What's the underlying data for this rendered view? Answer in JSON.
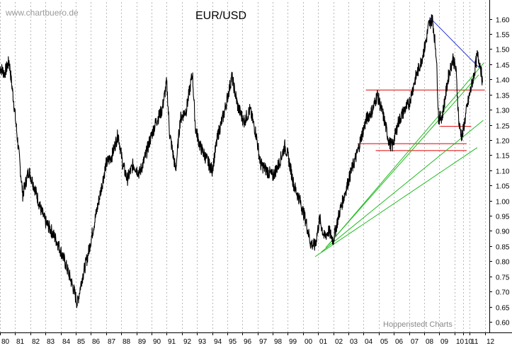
{
  "header": {
    "watermark": "www.chartbuero.de",
    "title": "EUR/USD",
    "credit": "Hoppenstedt Charts"
  },
  "colors": {
    "price": "#000000",
    "support_resistance": "#e00000",
    "uptrend": "#22bb22",
    "downtrend": "#2233cc",
    "grid": "#b8b8b8"
  },
  "chart_data": {
    "type": "line",
    "title": "EUR/USD",
    "xlabel": "",
    "ylabel": "",
    "xlim": [
      1980.0,
      2012.3
    ],
    "ylim": [
      0.565,
      1.655
    ],
    "y_ticks": [
      0.6,
      0.65,
      0.7,
      0.75,
      0.8,
      0.85,
      0.9,
      0.95,
      1.0,
      1.05,
      1.1,
      1.15,
      1.2,
      1.25,
      1.3,
      1.35,
      1.4,
      1.45,
      1.5,
      1.55,
      1.6
    ],
    "x_tick_labels": [
      "80",
      "81",
      "82",
      "83",
      "84",
      "85",
      "86",
      "87",
      "88",
      "89",
      "90",
      "91",
      "92",
      "93",
      "94",
      "95",
      "96",
      "97",
      "98",
      "99",
      "00",
      "01",
      "02",
      "03",
      "04",
      "05",
      "06",
      "07",
      "08",
      "09",
      "10",
      "10",
      "11",
      "12"
    ],
    "x_tick_years": [
      1980,
      1981,
      1982,
      1983,
      1984,
      1985,
      1986,
      1987,
      1988,
      1989,
      1990,
      1991,
      1992,
      1993,
      1994,
      1995,
      1996,
      1997,
      1998,
      1999,
      2000,
      2001,
      2002,
      2003,
      2004,
      2005,
      2006,
      2007,
      2008,
      2009,
      2010,
      2010.55,
      2011,
      2012
    ],
    "grid": "vertical dotted",
    "series": [
      {
        "x": [
          1980.0,
          1980.3,
          1980.6,
          1980.9,
          1981.2,
          1981.5,
          1981.9,
          1982.3,
          1982.7,
          1983.0,
          1983.4,
          1983.8,
          1984.2,
          1984.6,
          1984.9,
          1985.1,
          1985.4,
          1985.8,
          1986.2,
          1986.6,
          1987.0,
          1987.4,
          1987.8,
          1988.1,
          1988.4,
          1988.8,
          1989.2,
          1989.5,
          1989.9,
          1990.3,
          1990.7,
          1991.0,
          1991.2,
          1991.6,
          1991.9,
          1992.3,
          1992.7,
          1992.9,
          1993.2,
          1993.6,
          1994.0,
          1994.4,
          1994.8,
          1995.1,
          1995.3,
          1995.7,
          1996.1,
          1996.5,
          1996.9,
          1997.2,
          1997.6,
          1998.0,
          1998.4,
          1998.8,
          1999.0,
          1999.4,
          1999.8,
          2000.2,
          2000.5,
          2000.8,
          2001.1,
          2001.4,
          2001.7,
          2002.0,
          2002.4,
          2002.8,
          2003.2,
          2003.6,
          2003.9,
          2004.2,
          2004.6,
          2004.9,
          2005.3,
          2005.7,
          2005.9,
          2006.3,
          2006.7,
          2007.0,
          2007.4,
          2007.8,
          2008.1,
          2008.3,
          2008.55,
          2008.8,
          2008.95,
          2009.2,
          2009.6,
          2009.9,
          2010.1,
          2010.3,
          2010.5,
          2010.8,
          2011.0,
          2011.3,
          2011.5,
          2011.7,
          2011.85
        ],
        "values": [
          1.44,
          1.42,
          1.46,
          1.33,
          1.18,
          1.02,
          1.1,
          1.04,
          0.97,
          0.93,
          0.9,
          0.86,
          0.81,
          0.75,
          0.7,
          0.66,
          0.74,
          0.82,
          0.92,
          1.02,
          1.12,
          1.15,
          1.22,
          1.12,
          1.07,
          1.12,
          1.09,
          1.13,
          1.2,
          1.26,
          1.3,
          1.39,
          1.22,
          1.1,
          1.27,
          1.3,
          1.42,
          1.24,
          1.18,
          1.14,
          1.1,
          1.22,
          1.29,
          1.36,
          1.41,
          1.31,
          1.26,
          1.3,
          1.22,
          1.12,
          1.1,
          1.08,
          1.12,
          1.18,
          1.15,
          1.05,
          1.0,
          0.93,
          0.86,
          0.85,
          0.94,
          0.88,
          0.9,
          0.87,
          0.96,
          1.03,
          1.1,
          1.16,
          1.22,
          1.27,
          1.3,
          1.35,
          1.28,
          1.19,
          1.18,
          1.26,
          1.3,
          1.32,
          1.4,
          1.46,
          1.52,
          1.58,
          1.6,
          1.48,
          1.27,
          1.28,
          1.41,
          1.47,
          1.43,
          1.25,
          1.21,
          1.3,
          1.35,
          1.42,
          1.48,
          1.45,
          1.39
        ]
      }
    ],
    "lines": [
      {
        "kind": "resistance",
        "x": [
          2004.15,
          2012.0
        ],
        "values": [
          1.365,
          1.365
        ]
      },
      {
        "kind": "support",
        "x": [
          2009.05,
          2011.1
        ],
        "values": [
          1.245,
          1.245
        ]
      },
      {
        "kind": "support",
        "x": [
          2003.6,
          2010.8
        ],
        "values": [
          1.188,
          1.188
        ]
      },
      {
        "kind": "support",
        "x": [
          2004.8,
          2010.8
        ],
        "values": [
          1.165,
          1.165
        ]
      },
      {
        "kind": "uptrend",
        "x": [
          2000.8,
          2011.5
        ],
        "values": [
          0.815,
          1.175
        ]
      },
      {
        "kind": "uptrend",
        "x": [
          2001.2,
          2011.9
        ],
        "values": [
          0.83,
          1.265
        ]
      },
      {
        "kind": "uptrend",
        "x": [
          2001.5,
          2011.6
        ],
        "values": [
          0.845,
          1.415
        ]
      },
      {
        "kind": "uptrend",
        "x": [
          2001.7,
          2011.95
        ],
        "values": [
          0.855,
          1.455
        ]
      },
      {
        "kind": "downtrend",
        "x": [
          2008.35,
          2011.6
        ],
        "values": [
          1.605,
          1.44
        ]
      }
    ]
  }
}
